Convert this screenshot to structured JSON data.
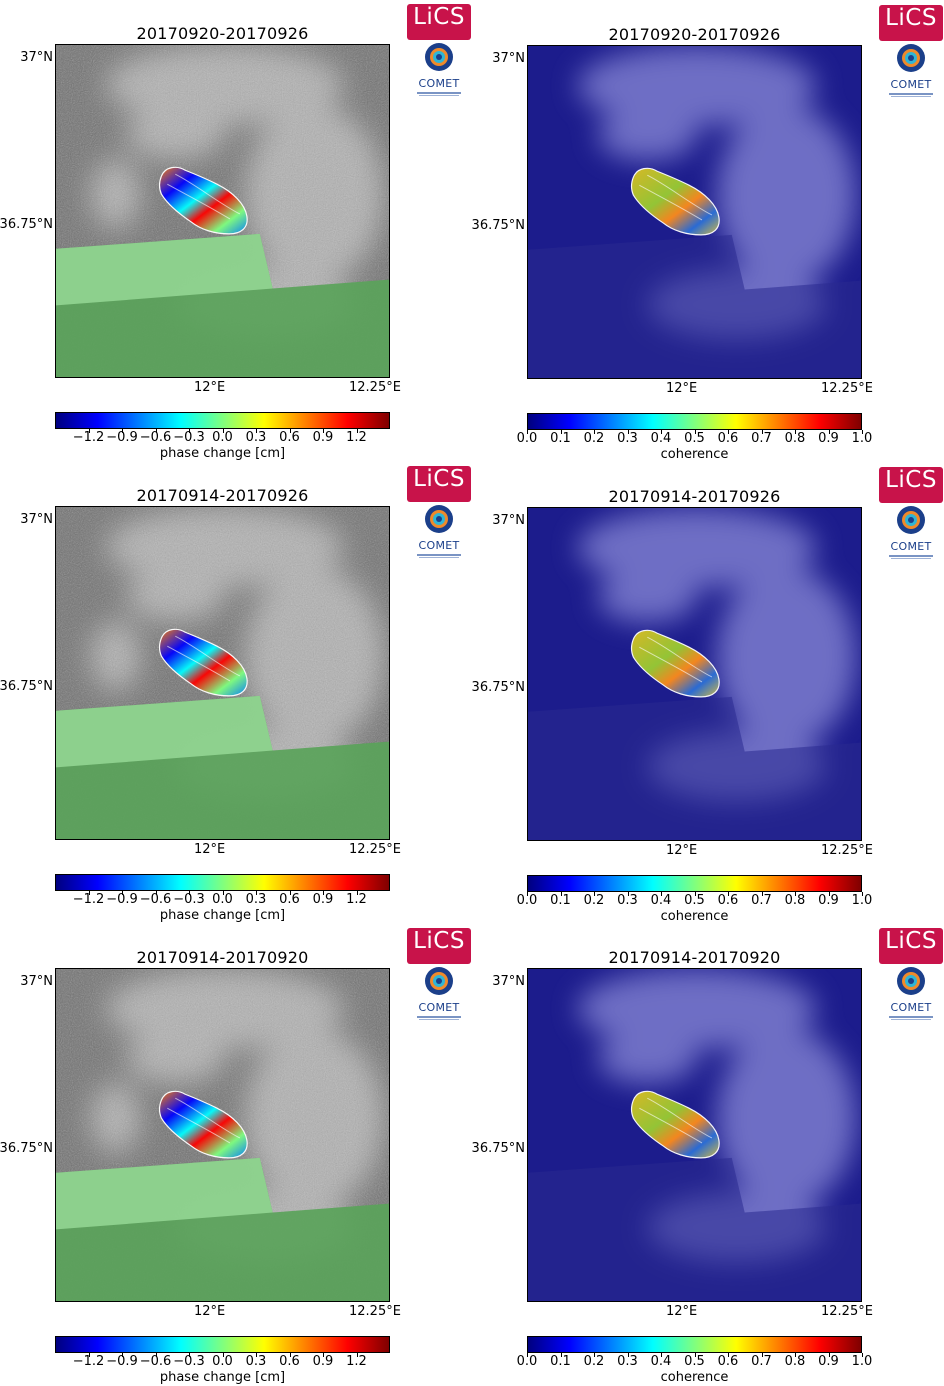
{
  "panels": [
    {
      "title": "20170920-20170926",
      "kind": "phase",
      "x_ticks": [
        "12°E",
        "12.25°E"
      ],
      "y_ticks": [
        "37°N",
        "36.75°N"
      ],
      "colorbar": {
        "label": "phase change [cm]",
        "ticks": [
          "−1.2",
          "−0.9",
          "−0.6",
          "−0.3",
          "0.0",
          "0.3",
          "0.6",
          "0.9",
          "1.2"
        ]
      }
    },
    {
      "title": "20170920-20170926",
      "kind": "coherence",
      "x_ticks": [
        "12°E",
        "12.25°E"
      ],
      "y_ticks": [
        "37°N",
        "36.75°N"
      ],
      "colorbar": {
        "label": "coherence",
        "ticks": [
          "0.0",
          "0.1",
          "0.2",
          "0.3",
          "0.4",
          "0.5",
          "0.6",
          "0.7",
          "0.8",
          "0.9",
          "1.0"
        ]
      }
    },
    {
      "title": "20170914-20170926",
      "kind": "phase",
      "x_ticks": [
        "12°E",
        "12.25°E"
      ],
      "y_ticks": [
        "37°N",
        "36.75°N"
      ],
      "colorbar": {
        "label": "phase change [cm]",
        "ticks": [
          "−1.2",
          "−0.9",
          "−0.6",
          "−0.3",
          "0.0",
          "0.3",
          "0.6",
          "0.9",
          "1.2"
        ]
      }
    },
    {
      "title": "20170914-20170926",
      "kind": "coherence",
      "x_ticks": [
        "12°E",
        "12.25°E"
      ],
      "y_ticks": [
        "37°N",
        "36.75°N"
      ],
      "colorbar": {
        "label": "coherence",
        "ticks": [
          "0.0",
          "0.1",
          "0.2",
          "0.3",
          "0.4",
          "0.5",
          "0.6",
          "0.7",
          "0.8",
          "0.9",
          "1.0"
        ]
      }
    },
    {
      "title": "20170914-20170920",
      "kind": "phase",
      "x_ticks": [
        "12°E",
        "12.25°E"
      ],
      "y_ticks": [
        "37°N",
        "36.75°N"
      ],
      "colorbar": {
        "label": "phase change [cm]",
        "ticks": [
          "−1.2",
          "−0.9",
          "−0.6",
          "−0.3",
          "0.0",
          "0.3",
          "0.6",
          "0.9",
          "1.2"
        ]
      }
    },
    {
      "title": "20170914-20170920",
      "kind": "coherence",
      "x_ticks": [
        "12°E",
        "12.25°E"
      ],
      "y_ticks": [
        "37°N",
        "36.75°N"
      ],
      "colorbar": {
        "label": "coherence",
        "ticks": [
          "0.0",
          "0.1",
          "0.2",
          "0.3",
          "0.4",
          "0.5",
          "0.6",
          "0.7",
          "0.8",
          "0.9",
          "1.0"
        ]
      }
    }
  ],
  "logos": {
    "lics": "LiCS",
    "comet": "COMET"
  },
  "colormap": [
    "#00007f",
    "#0000ff",
    "#007fff",
    "#00ffff",
    "#7fff7f",
    "#ffff00",
    "#ff7f00",
    "#ff0000",
    "#7f0000"
  ],
  "colors": {
    "land_gray": "#8c8c8c",
    "sea_green": "#5aa35a",
    "coherence_bg": "#1c1c8c",
    "coherence_haze": "#8a8ad8"
  }
}
